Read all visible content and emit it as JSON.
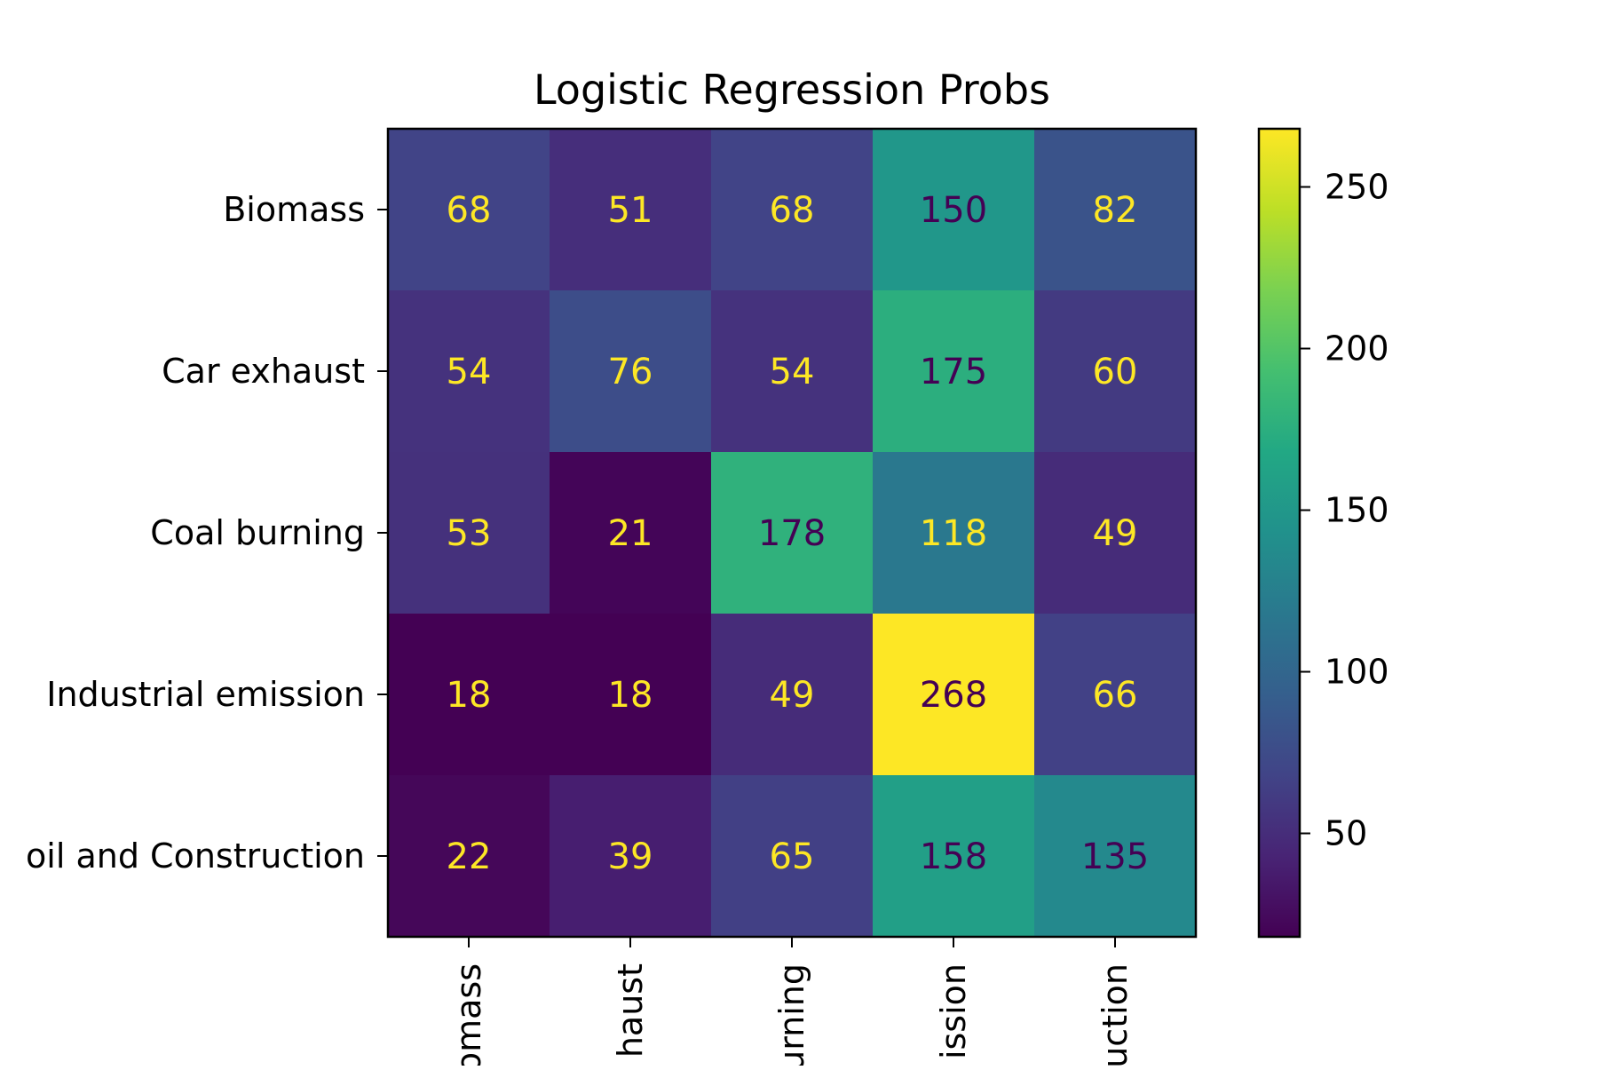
{
  "chart_data": {
    "type": "heatmap",
    "title": "Logistic Regression Probs",
    "xlabel": "",
    "ylabel": "",
    "row_labels": [
      "Biomass",
      "Car exhaust",
      "Coal burning",
      "Industrial emission",
      "oil and Construction"
    ],
    "col_labels": [
      "omass",
      "haust",
      "urning",
      "ission",
      "uction"
    ],
    "values": [
      [
        68,
        51,
        68,
        150,
        82
      ],
      [
        54,
        76,
        54,
        175,
        60
      ],
      [
        53,
        21,
        178,
        118,
        49
      ],
      [
        18,
        18,
        49,
        268,
        66
      ],
      [
        22,
        39,
        65,
        158,
        135
      ]
    ],
    "colormap": "viridis",
    "vmin": 18,
    "vmax": 268,
    "colorbar_ticks": [
      50,
      100,
      150,
      200,
      250
    ],
    "annotation_colors": {
      "on_dark": "#fde725",
      "on_light": "#440154"
    }
  }
}
